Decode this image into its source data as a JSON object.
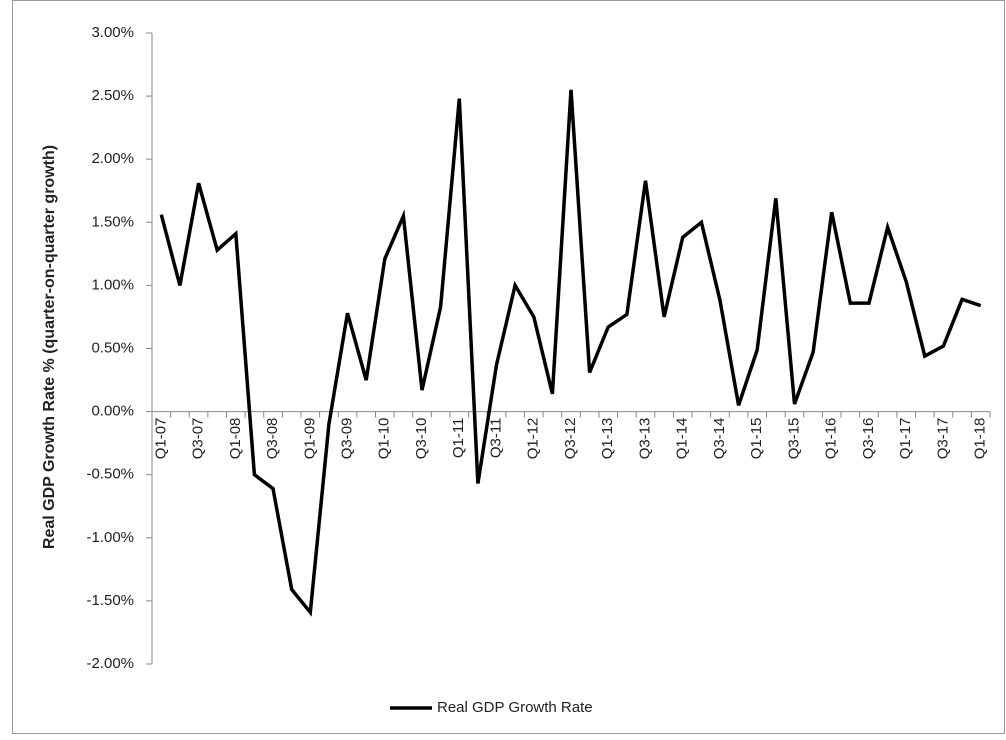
{
  "chart_data": {
    "type": "line",
    "y_label": "Real GDP  Growth Rate  % (quarter-on-quarter  growth)",
    "categories": [
      "Q1-07",
      null,
      "Q3-07",
      null,
      "Q1-08",
      null,
      "Q3-08",
      null,
      "Q1-09",
      null,
      "Q3-09",
      null,
      "Q1-10",
      null,
      "Q3-10",
      null,
      "Q1-11",
      null,
      "Q3-11",
      null,
      "Q1-12",
      null,
      "Q3-12",
      null,
      "Q1-13",
      null,
      "Q3-13",
      null,
      "Q1-14",
      null,
      "Q3-14",
      null,
      "Q1-15",
      null,
      "Q3-15",
      null,
      "Q1-16",
      null,
      "Q3-16",
      null,
      "Q1-17",
      null,
      "Q3-17",
      null,
      "Q1-18"
    ],
    "series": [
      {
        "name": "Real GDP Growth Rate",
        "color": "#000000",
        "values": [
          1.56,
          1.0,
          1.81,
          1.28,
          1.41,
          -0.5,
          -0.61,
          -1.41,
          -1.59,
          -0.1,
          0.78,
          0.25,
          1.21,
          1.55,
          0.17,
          0.83,
          2.48,
          -0.57,
          0.37,
          1.0,
          0.75,
          0.14,
          2.55,
          0.31,
          0.67,
          0.77,
          1.83,
          0.75,
          1.38,
          1.5,
          0.88,
          0.05,
          0.49,
          1.69,
          0.06,
          0.47,
          1.58,
          0.86,
          0.86,
          1.46,
          1.03,
          0.44,
          0.52,
          0.89,
          0.84
        ]
      }
    ],
    "ylim": [
      -2,
      3
    ],
    "yticks": [
      {
        "value": -2,
        "label": "-2.00%"
      },
      {
        "value": -1.5,
        "label": "-1.50%"
      },
      {
        "value": -1,
        "label": "-1.00%"
      },
      {
        "value": -0.5,
        "label": "-0.50%"
      },
      {
        "value": 0,
        "label": "0.00%"
      },
      {
        "value": 0.5,
        "label": "0.50%"
      },
      {
        "value": 1,
        "label": "1.00%"
      },
      {
        "value": 1.5,
        "label": "1.50%"
      },
      {
        "value": 2,
        "label": "2.00%"
      },
      {
        "value": 2.5,
        "label": "2.50%"
      },
      {
        "value": 3,
        "label": "3.00%"
      }
    ],
    "grid": false,
    "legend": "bottom"
  }
}
